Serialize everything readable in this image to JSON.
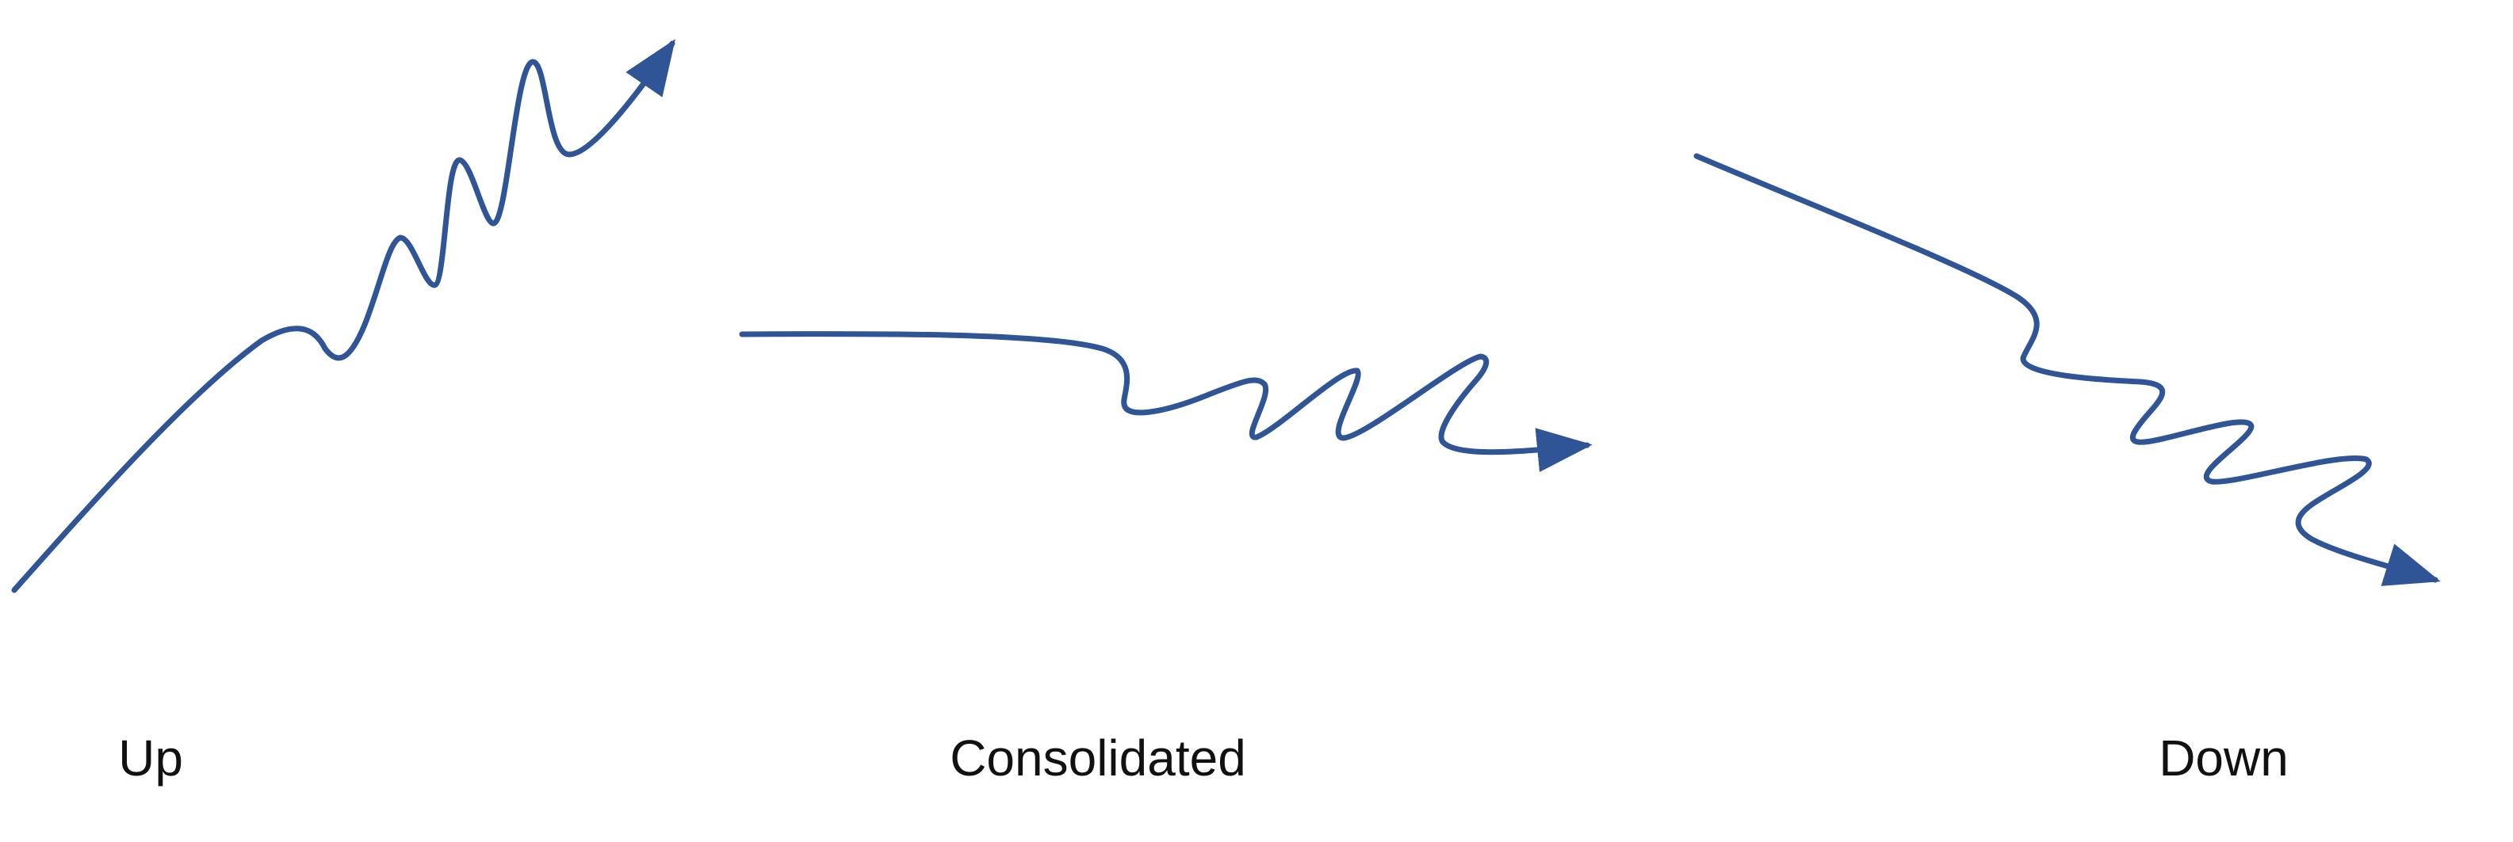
{
  "colors": {
    "stroke": "#2f5597",
    "background": "#ffffff",
    "text": "#111111"
  },
  "trends": [
    {
      "id": "up",
      "label": "Up",
      "icon": "upward-trend-arrow-icon"
    },
    {
      "id": "consolidated",
      "label": "Consolidated",
      "icon": "sideways-trend-arrow-icon"
    },
    {
      "id": "down",
      "label": "Down",
      "icon": "downward-trend-arrow-icon"
    }
  ]
}
